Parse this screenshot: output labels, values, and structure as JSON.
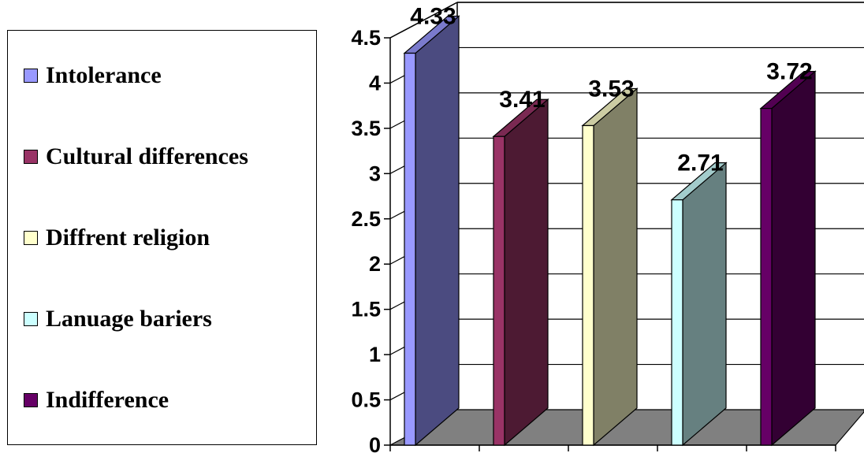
{
  "chart_data": {
    "type": "bar",
    "categories": [
      "Intolerance",
      "Cultural differences",
      "Diffrent religion",
      "Lanuage bariers",
      "Indifference"
    ],
    "values": [
      4.33,
      3.41,
      3.53,
      2.71,
      3.72
    ],
    "value_labels": [
      "4.33",
      "3.41",
      "3.53",
      "2.71",
      "3.72"
    ],
    "y_ticks": [
      "0",
      "0.5",
      "1",
      "1.5",
      "2",
      "2.5",
      "3",
      "3.5",
      "4",
      "4.5"
    ],
    "ylim": [
      0,
      4.5
    ],
    "three_d": true,
    "grid": true,
    "legend_position": "left",
    "colors": [
      {
        "front": "#9999FF",
        "side": "#4B4B80",
        "top": "#7A7ACC"
      },
      {
        "front": "#993366",
        "side": "#4D1A33",
        "top": "#7A2952"
      },
      {
        "front": "#FFFFCC",
        "side": "#808066",
        "top": "#CCCCA3"
      },
      {
        "front": "#CCFFFF",
        "side": "#668080",
        "top": "#A3CCCC"
      },
      {
        "front": "#660066",
        "side": "#330033",
        "top": "#520052"
      }
    ],
    "floor_color": "#808080"
  },
  "legend": {
    "items": [
      {
        "label": "Intolerance",
        "color": "#9999FF"
      },
      {
        "label": "Cultural differences",
        "color": "#993366"
      },
      {
        "label": "Diffrent religion",
        "color": "#FFFFCC"
      },
      {
        "label": "Lanuage bariers",
        "color": "#CCFFFF"
      },
      {
        "label": "Indifference",
        "color": "#660066"
      }
    ]
  }
}
